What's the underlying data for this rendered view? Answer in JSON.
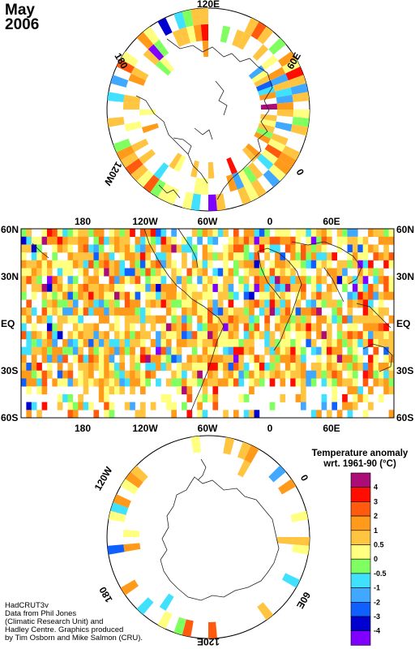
{
  "title": {
    "month": "May",
    "year": "2006"
  },
  "north_polar": {
    "labels": [
      "120E",
      "60E",
      "0",
      "120W",
      "180"
    ]
  },
  "equatorial": {
    "lon_labels": [
      "180",
      "120W",
      "60W",
      "0",
      "60E"
    ],
    "lat_labels": [
      "60N",
      "30N",
      "EQ",
      "30S",
      "60S"
    ]
  },
  "south_polar": {
    "labels": [
      "120W",
      "0",
      "60E",
      "120E",
      "180"
    ]
  },
  "legend": {
    "title_line1": "Temperature anomaly",
    "title_line2": "wrt. 1961-90  (°C)",
    "bins": [
      {
        "label": "4",
        "color": "#aa0d78"
      },
      {
        "label": "3",
        "color": "#ff0d00"
      },
      {
        "label": "2",
        "color": "#ff5a0d"
      },
      {
        "label": "1",
        "color": "#ff9a1a"
      },
      {
        "label": "0.5",
        "color": "#ffc440"
      },
      {
        "label": "0",
        "color": "#ffff80"
      },
      {
        "label": "-0.5",
        "color": "#80ff60"
      },
      {
        "label": "-1",
        "color": "#40e0ff"
      },
      {
        "label": "-2",
        "color": "#40a8ff"
      },
      {
        "label": "-3",
        "color": "#1060ff"
      },
      {
        "label": "-4",
        "color": "#0000d0"
      },
      {
        "label": "",
        "color": "#8000ff"
      }
    ]
  },
  "credit": {
    "line1": "HadCRUT3v",
    "line2": "Data from Phil Jones",
    "line3": "(Climatic Research Unit) and",
    "line4": "Hadley Centre.  Graphics produced",
    "line5": "by Tim Osborn and Mike Salmon (CRU)."
  }
}
